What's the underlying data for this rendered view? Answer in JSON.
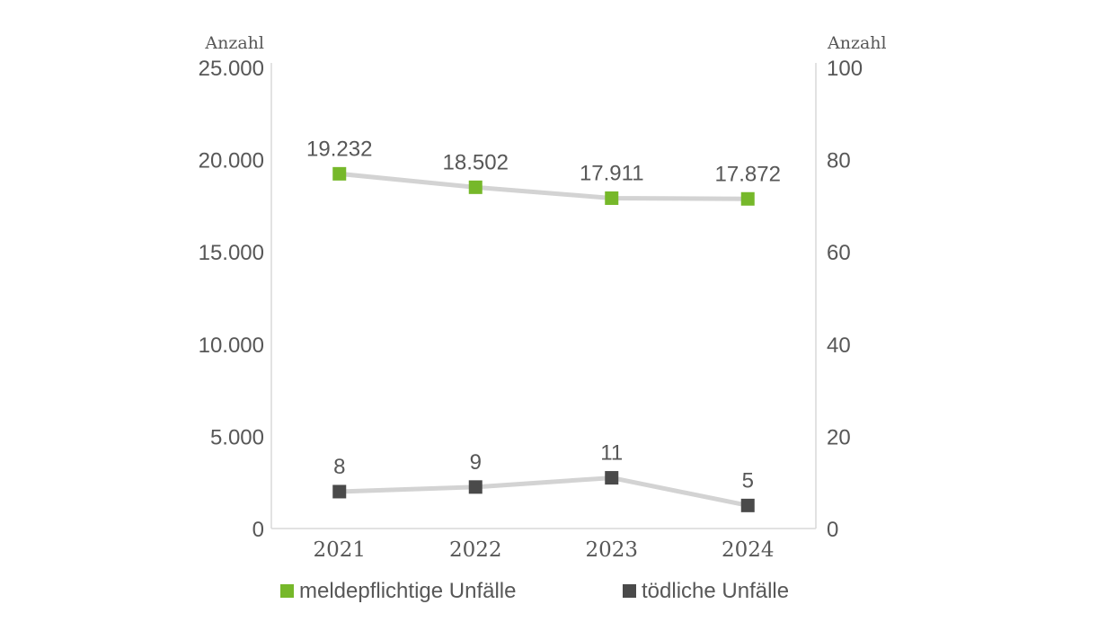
{
  "chart_data": {
    "type": "line",
    "dual_axis": true,
    "categories": [
      "2021",
      "2022",
      "2023",
      "2024"
    ],
    "series": [
      {
        "name": "meldepflichtige Unfälle",
        "axis": "left",
        "values": [
          19232,
          18502,
          17911,
          17872
        ],
        "labels": [
          "19.232",
          "18.502",
          "17.911",
          "17.872"
        ],
        "marker_color": "#76b82a",
        "line_color": "#d3d3d3"
      },
      {
        "name": "tödliche Unfälle",
        "axis": "right",
        "values": [
          8,
          9,
          11,
          5
        ],
        "labels": [
          "8",
          "9",
          "11",
          "5"
        ],
        "marker_color": "#4a4a4a",
        "line_color": "#d3d3d3"
      }
    ],
    "left_axis": {
      "label": "Anzahl",
      "ylim": [
        0,
        25000
      ],
      "ticks": [
        0,
        5000,
        10000,
        15000,
        20000,
        25000
      ],
      "tick_labels": [
        "0",
        "5.000",
        "10.000",
        "15.000",
        "20.000",
        "25.000"
      ]
    },
    "right_axis": {
      "label": "Anzahl",
      "ylim": [
        0,
        100
      ],
      "ticks": [
        0,
        20,
        40,
        60,
        80,
        100
      ],
      "tick_labels": [
        "0",
        "20",
        "40",
        "60",
        "80",
        "100"
      ]
    },
    "grid": false,
    "legend_position": "bottom",
    "axis_color": "#d9d9d9",
    "text_color": "#575757"
  }
}
